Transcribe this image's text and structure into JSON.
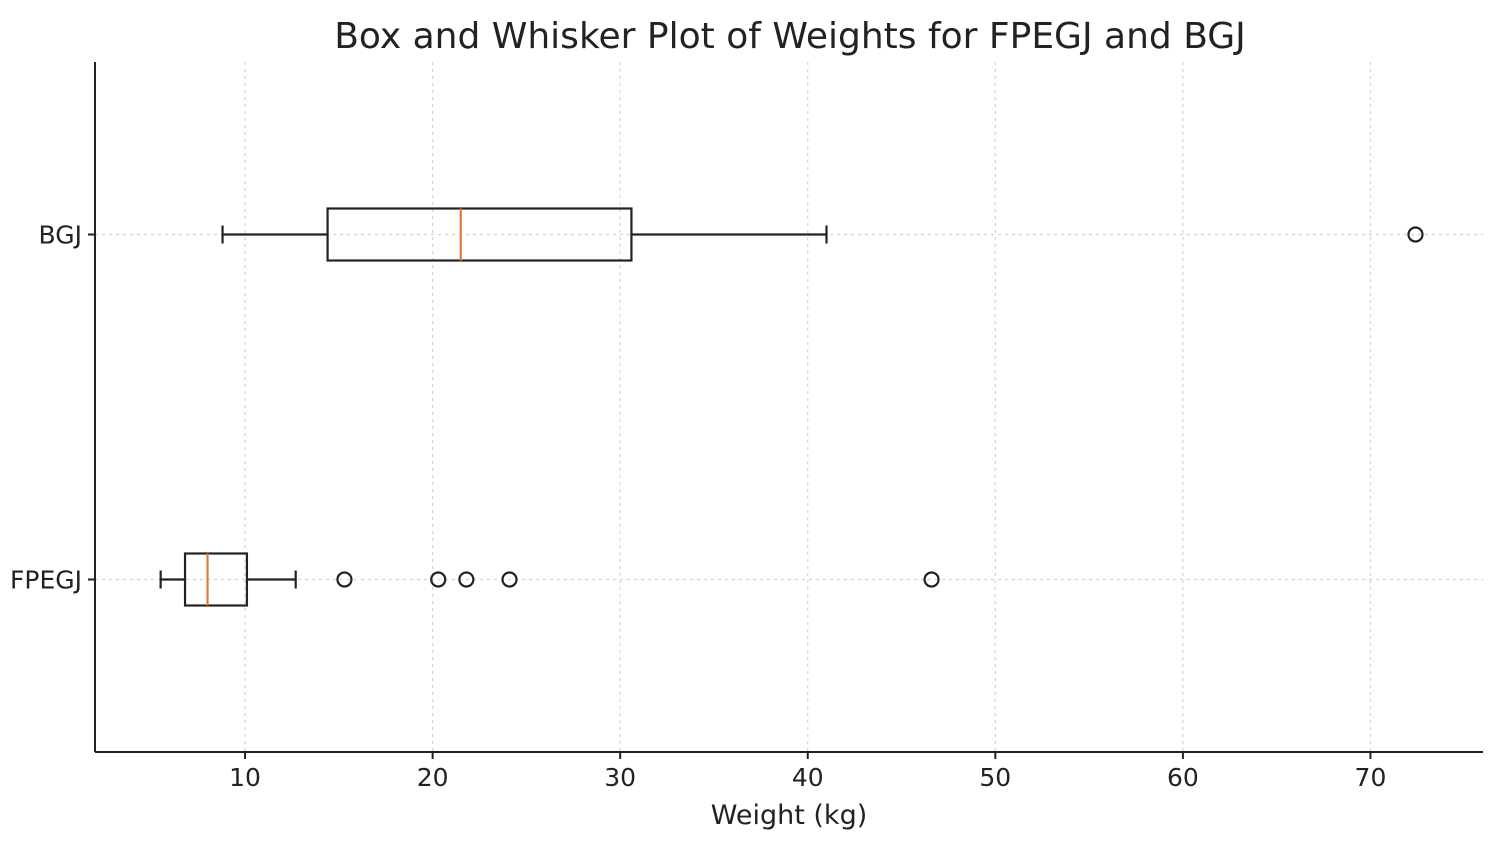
{
  "chart_data": {
    "type": "boxplot",
    "orientation": "horizontal",
    "title": "Box and Whisker Plot of Weights for FPEGJ and BGJ",
    "xlabel": "Weight (kg)",
    "ylabel": "",
    "xlim": [
      2,
      76
    ],
    "xticks": [
      10,
      20,
      30,
      40,
      50,
      60,
      70
    ],
    "grid": true,
    "categories": [
      "FPEGJ",
      "BGJ"
    ],
    "series": [
      {
        "name": "FPEGJ",
        "whisker_low": 5.5,
        "q1": 6.8,
        "median": 8.0,
        "q3": 10.1,
        "whisker_high": 12.7,
        "outliers": [
          15.3,
          20.3,
          21.8,
          24.1,
          46.6
        ]
      },
      {
        "name": "BGJ",
        "whisker_low": 8.8,
        "q1": 14.4,
        "median": 21.5,
        "q3": 30.6,
        "whisker_high": 41.0,
        "outliers": [
          72.4
        ]
      }
    ],
    "colors": {
      "box": "#222222",
      "median": "#e07a3a",
      "grid": "#d4d4d4"
    }
  }
}
